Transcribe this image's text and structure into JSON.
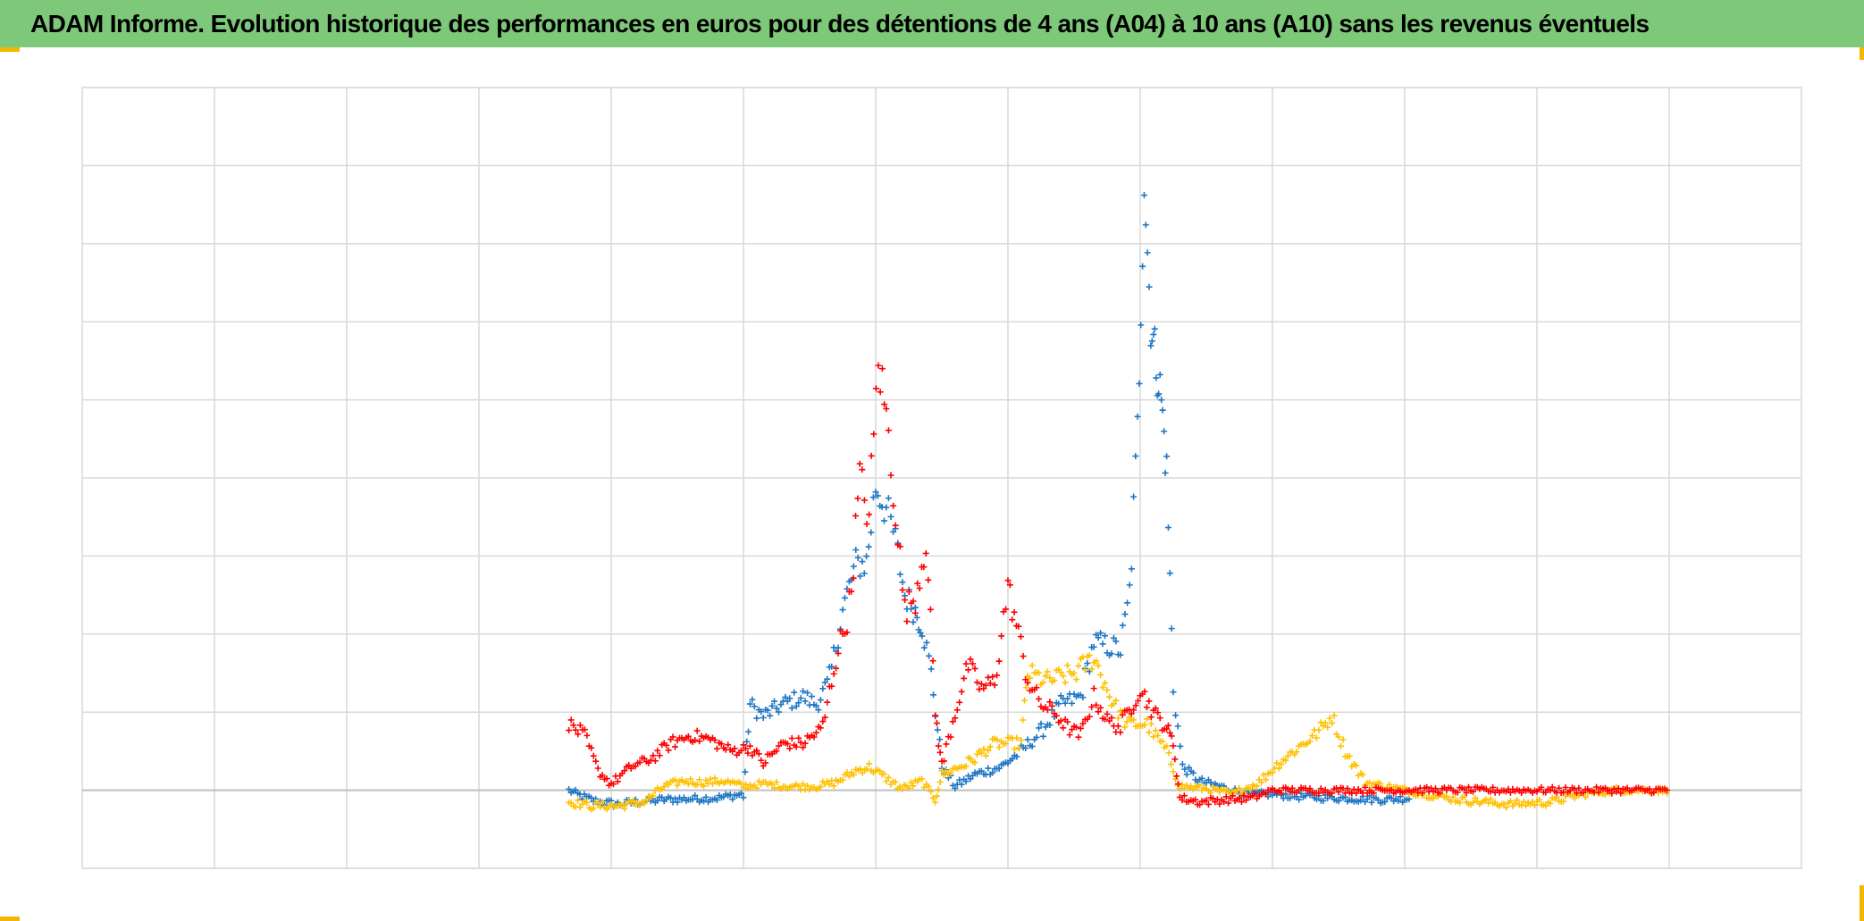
{
  "title": "ADAM Informe. Evolution historique des performances en euros pour des détentions de 4 ans (A04) à 10 ans (A10) sans les revenus éventuels",
  "colors": {
    "title_bg": "#7ec87a",
    "corner_marks": "#f2b700",
    "grid": "#d9d9d9",
    "zero_line": "#bfbfbf"
  },
  "chart_data": {
    "type": "scatter",
    "marker": "plus",
    "grid": true,
    "x_categories": 13,
    "ylim": [
      -1,
      9
    ],
    "y_gridlines": [
      -1,
      0,
      1,
      2,
      3,
      4,
      5,
      6,
      7,
      8,
      9
    ],
    "series": [
      {
        "color": "#1f77c4",
        "points": [
          [
            3.68,
            0.0
          ],
          [
            3.78,
            -0.08
          ],
          [
            3.9,
            -0.15
          ],
          [
            4.05,
            -0.18
          ],
          [
            4.2,
            -0.15
          ],
          [
            4.4,
            -0.12
          ],
          [
            4.6,
            -0.11
          ],
          [
            4.8,
            -0.1
          ],
          [
            5.0,
            -0.05
          ],
          [
            5.05,
            1.1
          ],
          [
            5.15,
            0.95
          ],
          [
            5.3,
            1.1
          ],
          [
            5.45,
            1.2
          ],
          [
            5.55,
            1.1
          ],
          [
            5.65,
            1.4
          ],
          [
            5.75,
            2.3
          ],
          [
            5.85,
            2.9
          ],
          [
            5.93,
            2.9
          ],
          [
            6.0,
            3.9
          ],
          [
            6.08,
            3.6
          ],
          [
            6.15,
            3.2
          ],
          [
            6.22,
            2.5
          ],
          [
            6.3,
            2.3
          ],
          [
            6.35,
            2.1
          ],
          [
            6.42,
            1.5
          ],
          [
            6.5,
            0.3
          ],
          [
            6.6,
            0.05
          ],
          [
            6.75,
            0.2
          ],
          [
            6.95,
            0.3
          ],
          [
            7.1,
            0.5
          ],
          [
            7.25,
            0.75
          ],
          [
            7.4,
            1.1
          ],
          [
            7.55,
            1.2
          ],
          [
            7.65,
            1.9
          ],
          [
            7.75,
            1.85
          ],
          [
            7.85,
            1.8
          ],
          [
            7.92,
            2.5
          ],
          [
            7.98,
            4.6
          ],
          [
            8.03,
            7.8
          ],
          [
            8.08,
            6.0
          ],
          [
            8.12,
            5.5
          ],
          [
            8.16,
            5.0
          ],
          [
            8.2,
            4.1
          ],
          [
            8.25,
            1.3
          ],
          [
            8.32,
            0.3
          ],
          [
            8.45,
            0.12
          ],
          [
            8.6,
            0.05
          ],
          [
            8.8,
            -0.05
          ],
          [
            9.0,
            -0.05
          ],
          [
            9.2,
            -0.08
          ],
          [
            9.5,
            -0.1
          ],
          [
            9.85,
            -0.12
          ],
          [
            10.05,
            -0.1
          ]
        ]
      },
      {
        "color": "#ffc000",
        "points": [
          [
            3.68,
            -0.15
          ],
          [
            3.85,
            -0.2
          ],
          [
            4.05,
            -0.2
          ],
          [
            4.25,
            -0.15
          ],
          [
            4.4,
            0.05
          ],
          [
            4.55,
            0.12
          ],
          [
            4.7,
            0.1
          ],
          [
            4.85,
            0.12
          ],
          [
            5.0,
            0.05
          ],
          [
            5.15,
            0.08
          ],
          [
            5.35,
            0.05
          ],
          [
            5.55,
            0.05
          ],
          [
            5.7,
            0.1
          ],
          [
            5.85,
            0.25
          ],
          [
            5.95,
            0.3
          ],
          [
            6.08,
            0.15
          ],
          [
            6.2,
            0.02
          ],
          [
            6.35,
            0.12
          ],
          [
            6.45,
            -0.12
          ],
          [
            6.5,
            0.2
          ],
          [
            6.7,
            0.35
          ],
          [
            6.9,
            0.6
          ],
          [
            7.1,
            0.6
          ],
          [
            7.15,
            1.5
          ],
          [
            7.3,
            1.4
          ],
          [
            7.5,
            1.5
          ],
          [
            7.65,
            1.7
          ],
          [
            7.8,
            1.1
          ],
          [
            7.9,
            0.85
          ],
          [
            8.05,
            0.85
          ],
          [
            8.2,
            0.5
          ],
          [
            8.3,
            0.05
          ],
          [
            8.5,
            0.02
          ],
          [
            8.7,
            -0.05
          ],
          [
            8.9,
            0.1
          ],
          [
            9.05,
            0.35
          ],
          [
            9.2,
            0.55
          ],
          [
            9.35,
            0.75
          ],
          [
            9.45,
            0.95
          ],
          [
            9.55,
            0.5
          ],
          [
            9.7,
            0.1
          ],
          [
            10.0,
            0.0
          ],
          [
            10.4,
            -0.12
          ],
          [
            10.8,
            -0.18
          ],
          [
            11.1,
            -0.15
          ],
          [
            11.35,
            -0.05
          ],
          [
            11.6,
            0.0
          ],
          [
            12.0,
            0.0
          ]
        ]
      },
      {
        "color": "#ff0000",
        "points": [
          [
            3.68,
            0.85
          ],
          [
            3.8,
            0.7
          ],
          [
            3.9,
            0.25
          ],
          [
            4.0,
            0.08
          ],
          [
            4.15,
            0.3
          ],
          [
            4.3,
            0.4
          ],
          [
            4.45,
            0.6
          ],
          [
            4.6,
            0.7
          ],
          [
            4.75,
            0.65
          ],
          [
            4.9,
            0.5
          ],
          [
            5.05,
            0.55
          ],
          [
            5.15,
            0.35
          ],
          [
            5.3,
            0.6
          ],
          [
            5.45,
            0.6
          ],
          [
            5.6,
            0.8
          ],
          [
            5.7,
            1.7
          ],
          [
            5.8,
            2.3
          ],
          [
            5.88,
            4.0
          ],
          [
            5.95,
            3.5
          ],
          [
            6.02,
            5.5
          ],
          [
            6.08,
            4.8
          ],
          [
            6.15,
            3.6
          ],
          [
            6.22,
            2.3
          ],
          [
            6.3,
            2.5
          ],
          [
            6.38,
            3.2
          ],
          [
            6.45,
            1.0
          ],
          [
            6.5,
            0.3
          ],
          [
            6.6,
            1.0
          ],
          [
            6.7,
            1.6
          ],
          [
            6.8,
            1.3
          ],
          [
            6.9,
            1.4
          ],
          [
            7.0,
            2.6
          ],
          [
            7.08,
            2.0
          ],
          [
            7.15,
            1.4
          ],
          [
            7.25,
            1.1
          ],
          [
            7.35,
            1.0
          ],
          [
            7.45,
            0.8
          ],
          [
            7.55,
            0.7
          ],
          [
            7.65,
            1.2
          ],
          [
            7.75,
            0.9
          ],
          [
            7.85,
            0.8
          ],
          [
            8.0,
            1.3
          ],
          [
            8.1,
            1.0
          ],
          [
            8.2,
            0.8
          ],
          [
            8.25,
            0.6
          ],
          [
            8.3,
            -0.1
          ],
          [
            8.45,
            -0.15
          ],
          [
            8.65,
            -0.12
          ],
          [
            8.85,
            -0.1
          ],
          [
            9.0,
            0.0
          ],
          [
            9.5,
            0.0
          ],
          [
            10.5,
            0.0
          ],
          [
            12.0,
            0.0
          ]
        ]
      }
    ]
  }
}
